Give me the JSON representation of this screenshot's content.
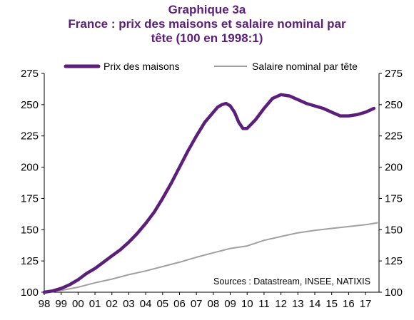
{
  "chart_data": {
    "type": "line",
    "title_lines": [
      "Graphique 3a",
      "France : prix des maisons et salaire nominal par",
      "tête (100 en 1998:1)"
    ],
    "source": "Sources : Datastream, INSEE, NATIXIS",
    "x_tick_labels": [
      "98",
      "99",
      "00",
      "01",
      "02",
      "03",
      "04",
      "05",
      "06",
      "07",
      "08",
      "09",
      "10",
      "11",
      "12",
      "13",
      "14",
      "15",
      "16",
      "17"
    ],
    "xlim": [
      1998,
      2017.8
    ],
    "ylim": [
      100,
      275
    ],
    "y_ticks": [
      100,
      125,
      150,
      175,
      200,
      225,
      250,
      275
    ],
    "y_axis_both_sides": true,
    "legend_position": "top",
    "series": [
      {
        "name": "Prix des maisons",
        "color": "#5b1f7a",
        "x": [
          1998.0,
          1998.5,
          1999.0,
          1999.5,
          2000.0,
          2000.5,
          2001.0,
          2001.5,
          2002.0,
          2002.5,
          2003.0,
          2003.5,
          2004.0,
          2004.5,
          2005.0,
          2005.5,
          2006.0,
          2006.5,
          2007.0,
          2007.5,
          2008.0,
          2008.25,
          2008.5,
          2008.75,
          2009.0,
          2009.25,
          2009.5,
          2009.75,
          2010.0,
          2010.5,
          2011.0,
          2011.5,
          2012.0,
          2012.5,
          2013.0,
          2013.5,
          2014.0,
          2014.5,
          2015.0,
          2015.5,
          2016.0,
          2016.5,
          2017.0,
          2017.5
        ],
        "values": [
          100,
          101,
          103,
          106,
          110,
          115,
          119,
          124,
          129,
          134,
          140,
          147,
          155,
          164,
          175,
          187,
          200,
          213,
          225,
          236,
          244,
          248,
          250,
          251,
          249,
          244,
          236,
          231,
          231,
          238,
          247,
          255,
          258,
          257,
          254,
          251,
          249,
          247,
          244,
          241,
          241,
          242,
          244,
          247
        ]
      },
      {
        "name": "Salaire nominal par tête",
        "color": "#a0a0a0",
        "x": [
          1998,
          1999,
          2000,
          2001,
          2002,
          2003,
          2004,
          2005,
          2006,
          2007,
          2008,
          2009,
          2010,
          2011,
          2012,
          2013,
          2014,
          2015,
          2016,
          2017,
          2017.7
        ],
        "values": [
          100,
          101.5,
          104,
          107.5,
          110.5,
          114,
          117,
          120.5,
          124,
          128,
          131.5,
          135,
          137,
          141.5,
          144.5,
          147.5,
          149.5,
          151,
          152.5,
          154,
          155.5
        ]
      }
    ]
  }
}
